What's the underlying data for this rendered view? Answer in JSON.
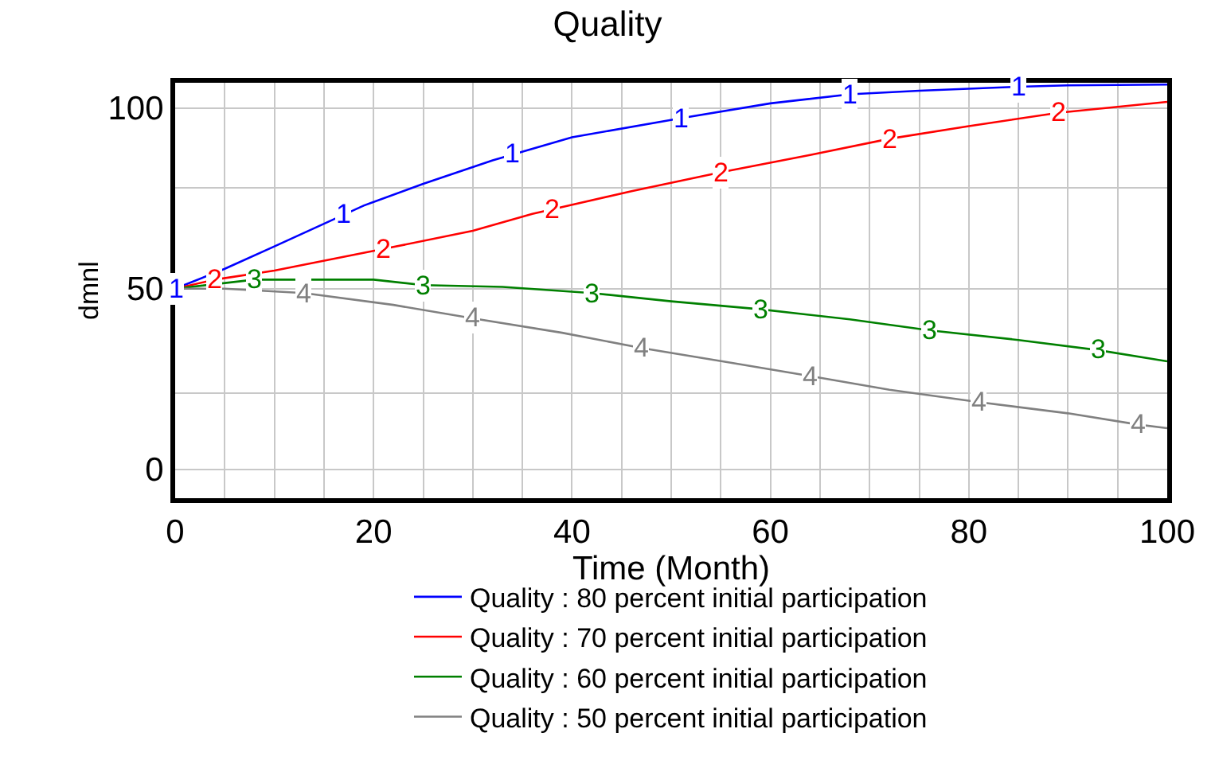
{
  "chart_data": {
    "type": "line",
    "title": "Quality",
    "xlabel": "Time (Month)",
    "ylabel": "dmnl",
    "xlim": [
      0,
      100
    ],
    "xticks": [
      0,
      {
        "value": 5,
        "label": null
      },
      {
        "value": 10,
        "label": null
      },
      {
        "value": 15,
        "label": null
      },
      20,
      {
        "value": 25,
        "label": null
      },
      {
        "value": 30,
        "label": null
      },
      {
        "value": 35,
        "label": null
      },
      40,
      {
        "value": 45,
        "label": null
      },
      {
        "value": 50,
        "label": null
      },
      {
        "value": 55,
        "label": null
      },
      60,
      {
        "value": 65,
        "label": null
      },
      {
        "value": 70,
        "label": null
      },
      {
        "value": 75,
        "label": null
      },
      80,
      {
        "value": 85,
        "label": null
      },
      {
        "value": 90,
        "label": null
      },
      {
        "value": 95,
        "label": null
      },
      100
    ],
    "ylim": [
      -8,
      107
    ],
    "yticks": [
      0,
      {
        "value": 21,
        "label": null
      },
      50,
      {
        "value": 78,
        "label": null
      },
      100
    ],
    "grid": true,
    "legend": "bottom",
    "line_style": "solid",
    "series": [
      {
        "name": "Quality : 80 percent initial participation",
        "color": "#0000ff",
        "x": [
          0,
          5,
          10,
          19,
          25,
          32,
          40,
          51,
          60,
          68,
          75,
          85,
          90,
          100
        ],
        "values": [
          50,
          55.5,
          61.7,
          73,
          79,
          85.5,
          91.9,
          97.2,
          101.3,
          103.8,
          104.8,
          105.9,
          106.3,
          106.5
        ]
      },
      {
        "name": "Quality : 70 percent initial participation",
        "color": "#ff0000",
        "x": [
          0,
          4,
          10,
          21,
          30,
          36,
          46,
          55,
          64,
          72,
          80,
          89,
          100
        ],
        "values": [
          50,
          52.5,
          55,
          61,
          66,
          70.7,
          77,
          82.2,
          87,
          91.5,
          95,
          98.7,
          101.7
        ]
      },
      {
        "name": "Quality : 60 percent initial participation",
        "color": "#008000",
        "x": [
          0,
          8,
          20,
          25,
          33,
          42,
          50,
          59,
          68,
          76,
          85,
          93,
          100
        ],
        "values": [
          50,
          52.5,
          52.5,
          51,
          50.5,
          48.8,
          46.5,
          44.3,
          41.5,
          38.5,
          35.8,
          33,
          29.9
        ]
      },
      {
        "name": "Quality : 50 percent initial participation",
        "color": "#808080",
        "x": [
          0,
          5,
          13,
          22,
          30,
          39,
          47,
          56,
          64,
          72,
          81,
          90,
          97,
          100
        ],
        "values": [
          50,
          50,
          48.8,
          45.5,
          41.8,
          37.8,
          33.6,
          29.5,
          25.8,
          22,
          18.6,
          15.5,
          12.4,
          11.4
        ]
      }
    ],
    "annotations": [
      {
        "text": "1",
        "x": 0,
        "y": 50
      },
      {
        "text": "1",
        "x": 17,
        "y": 70.5
      },
      {
        "text": "1",
        "x": 34,
        "y": 87.4
      },
      {
        "text": "1",
        "x": 51,
        "y": 97.2
      },
      {
        "text": "1",
        "x": 68,
        "y": 103.8
      },
      {
        "text": "1",
        "x": 85,
        "y": 105.9
      },
      {
        "text": "2",
        "x": 4,
        "y": 52.5
      },
      {
        "text": "2",
        "x": 21,
        "y": 61
      },
      {
        "text": "2",
        "x": 38,
        "y": 72
      },
      {
        "text": "2",
        "x": 55,
        "y": 82.2
      },
      {
        "text": "2",
        "x": 72,
        "y": 91.5
      },
      {
        "text": "2",
        "x": 89,
        "y": 98.7
      },
      {
        "text": "3",
        "x": 8,
        "y": 52.5
      },
      {
        "text": "3",
        "x": 25,
        "y": 51
      },
      {
        "text": "3",
        "x": 42,
        "y": 48.8
      },
      {
        "text": "3",
        "x": 59,
        "y": 44.3
      },
      {
        "text": "3",
        "x": 76,
        "y": 38.5
      },
      {
        "text": "3",
        "x": 93,
        "y": 33
      },
      {
        "text": "4",
        "x": 13,
        "y": 48.8
      },
      {
        "text": "4",
        "x": 30,
        "y": 41.8
      },
      {
        "text": "4",
        "x": 47,
        "y": 33.6
      },
      {
        "text": "4",
        "x": 64,
        "y": 25.8
      },
      {
        "text": "4",
        "x": 81,
        "y": 18.6
      },
      {
        "text": "4",
        "x": 97,
        "y": 12.4
      }
    ]
  }
}
